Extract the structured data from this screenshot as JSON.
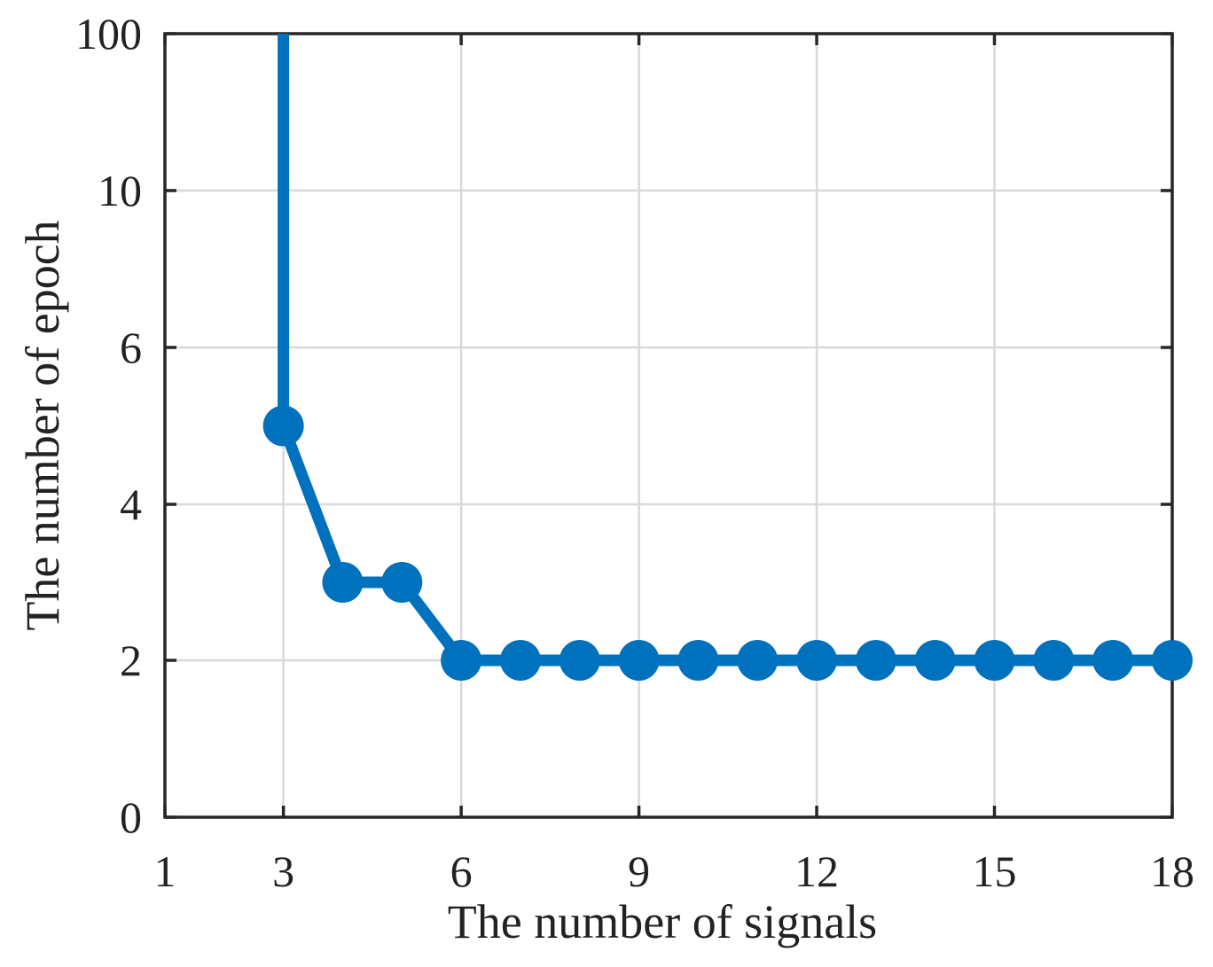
{
  "chart_data": {
    "type": "line",
    "xlabel": "The number of signals",
    "ylabel": "The number of epoch",
    "xlim": [
      1,
      18
    ],
    "x_ticks": [
      1,
      3,
      6,
      9,
      12,
      15,
      18
    ],
    "x_tick_labels": [
      "1",
      "3",
      "6",
      "9",
      "12",
      "15",
      "18"
    ],
    "y_scale": "piecewise: linear 0-6, 6 to 10, 10 to 100 compressed",
    "y_ticks": [
      0,
      2,
      4,
      6,
      10,
      100
    ],
    "y_tick_labels": [
      "0",
      "2",
      "4",
      "6",
      "10",
      "100"
    ],
    "ylim": [
      0,
      100
    ],
    "grid": true,
    "legend": "none",
    "series": [
      {
        "color": "#0072BD",
        "x": [
          3,
          3,
          4,
          5,
          6,
          7,
          8,
          9,
          10,
          11,
          12,
          13,
          14,
          15,
          16,
          17,
          18
        ],
        "y": [
          100,
          5,
          3,
          3,
          2,
          2,
          2,
          2,
          2,
          2,
          2,
          2,
          2,
          2,
          2,
          2,
          2
        ],
        "markers": [
          false,
          true,
          true,
          true,
          true,
          true,
          true,
          true,
          true,
          true,
          true,
          true,
          true,
          true,
          true,
          true,
          true
        ]
      }
    ]
  }
}
